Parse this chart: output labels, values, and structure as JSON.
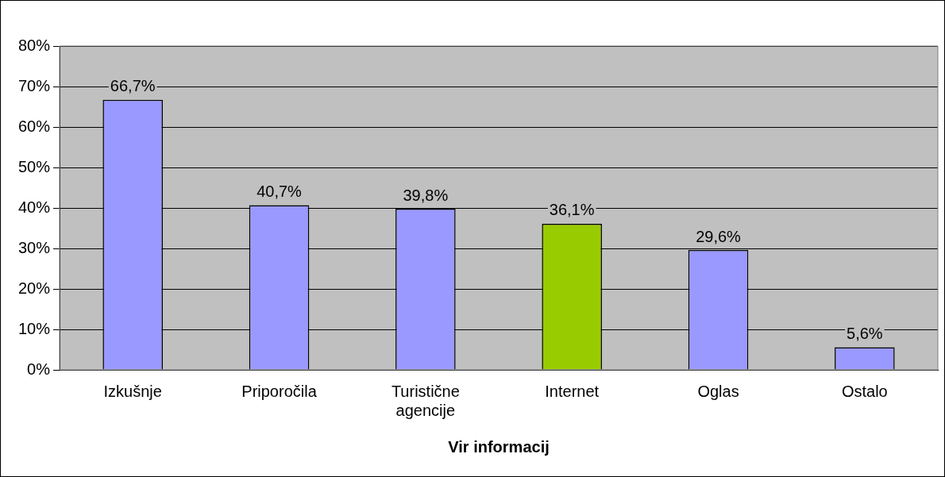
{
  "chart_data": {
    "type": "bar",
    "xlabel": "Vir informacij",
    "categories": [
      "Izkušnje",
      "Priporočila",
      "Turistične agencije",
      "Internet",
      "Oglas",
      "Ostalo"
    ],
    "values": [
      66.7,
      40.7,
      39.8,
      36.1,
      29.6,
      5.6
    ],
    "colors": [
      "#9999ff",
      "#9999ff",
      "#9999ff",
      "#99cc00",
      "#9999ff",
      "#9999ff"
    ],
    "value_labels": [
      "66,7%",
      "40,7%",
      "39,8%",
      "36,1%",
      "29,6%",
      "5,6%"
    ],
    "ylim": [
      0,
      80
    ],
    "yticks": [
      {
        "value": 0,
        "label": "0%"
      },
      {
        "value": 10,
        "label": "10%"
      },
      {
        "value": 20,
        "label": "20%"
      },
      {
        "value": 30,
        "label": "30%"
      },
      {
        "value": 40,
        "label": "40%"
      },
      {
        "value": 50,
        "label": "50%"
      },
      {
        "value": 60,
        "label": "60%"
      },
      {
        "value": 70,
        "label": "70%"
      },
      {
        "value": 80,
        "label": "80%"
      }
    ],
    "grid": "y",
    "legend": false
  }
}
